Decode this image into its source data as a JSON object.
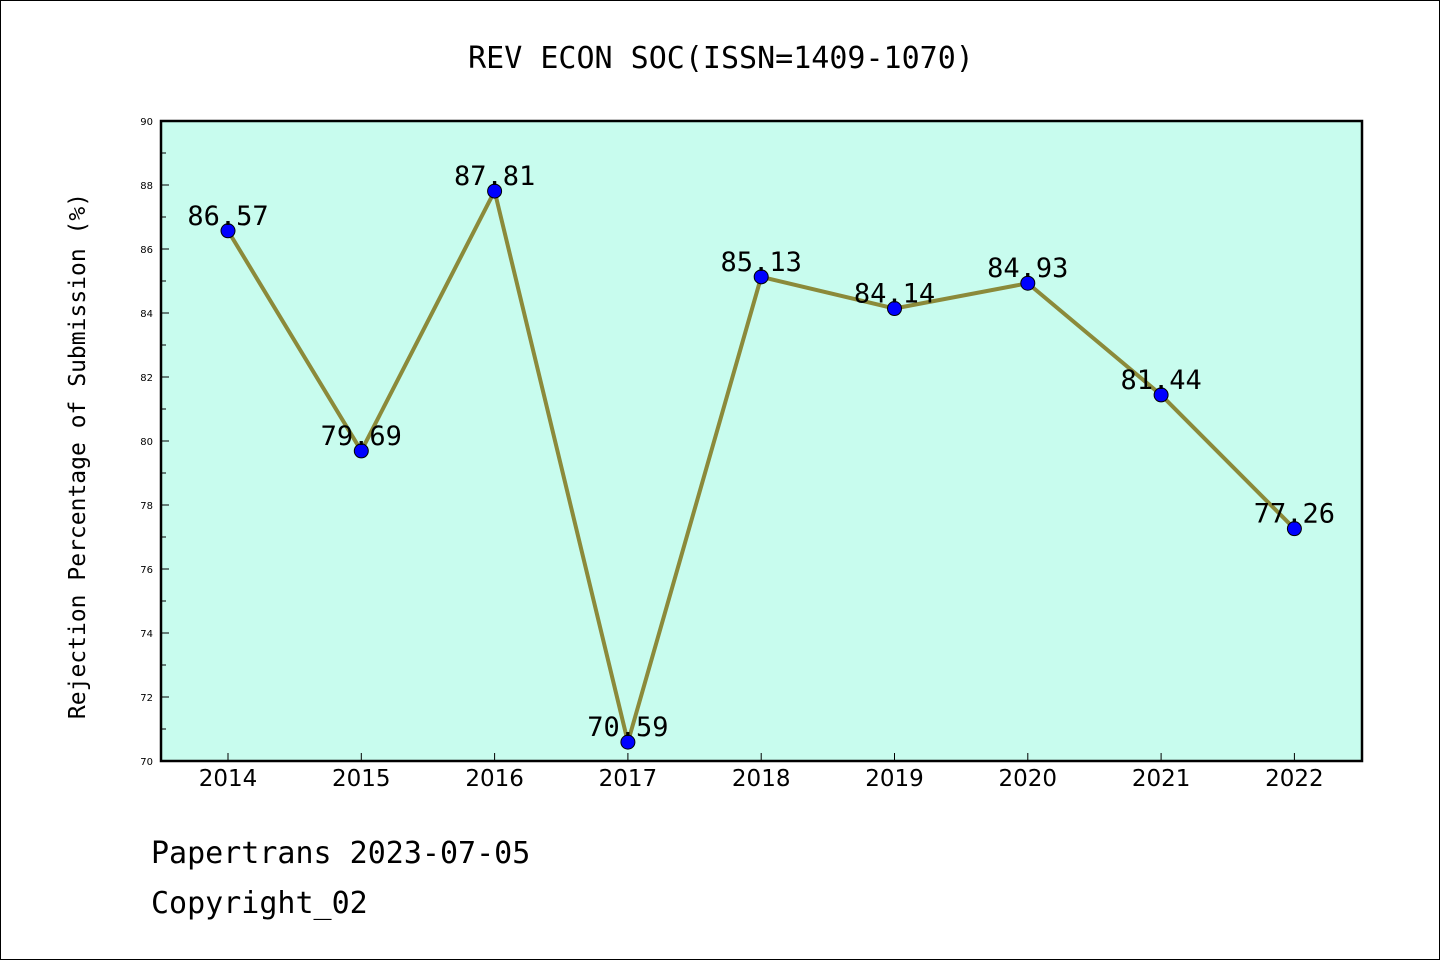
{
  "chart_data": {
    "type": "line",
    "title": "REV ECON SOC(ISSN=1409-1070)",
    "xlabel": "",
    "ylabel": "Rejection Percentage of Submission (%)",
    "categories": [
      "2014",
      "2015",
      "2016",
      "2017",
      "2018",
      "2019",
      "2020",
      "2021",
      "2022"
    ],
    "series": [
      {
        "values": [
          86.57,
          79.69,
          87.81,
          70.59,
          85.13,
          84.14,
          84.93,
          81.44,
          77.26
        ],
        "labels": [
          "86.57",
          "79.69",
          "87.81",
          "70.59",
          "85.13",
          "84.14",
          "84.93",
          "81.44",
          "77.26"
        ]
      }
    ],
    "ylim": [
      70,
      90
    ],
    "yticks": [
      "70",
      "72",
      "74",
      "76",
      "78",
      "80",
      "82",
      "84",
      "86",
      "88",
      "90"
    ],
    "grid": false,
    "colors": {
      "plot_background": "#c8fcee",
      "line": "#8b8a3a",
      "marker": "#0000ff"
    }
  },
  "footer": {
    "line1": "Papertrans 2023-07-05",
    "line2": "Copyright_02"
  }
}
